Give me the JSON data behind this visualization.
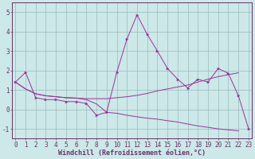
{
  "xlabel": "Windchill (Refroidissement éolien,°C)",
  "bg_color": "#cce8e8",
  "grid_color": "#99bbbb",
  "line_color": "#993399",
  "spine_color": "#663366",
  "x_ticks": [
    0,
    1,
    2,
    3,
    4,
    5,
    6,
    7,
    8,
    9,
    10,
    11,
    12,
    13,
    14,
    15,
    16,
    17,
    18,
    19,
    20,
    21,
    22,
    23
  ],
  "y_ticks": [
    -1,
    0,
    1,
    2,
    3,
    4,
    5
  ],
  "ylim": [
    -1.5,
    5.5
  ],
  "xlim": [
    -0.3,
    23.3
  ],
  "line1_x": [
    0,
    1,
    2,
    3,
    4,
    5,
    6,
    7,
    8,
    9,
    10,
    11,
    12,
    13,
    14,
    15,
    16,
    17,
    18,
    19,
    20,
    21,
    22,
    23
  ],
  "line1_y": [
    1.4,
    1.9,
    0.6,
    0.5,
    0.5,
    0.4,
    0.4,
    0.3,
    -0.3,
    -0.15,
    1.9,
    3.6,
    4.85,
    3.85,
    3.0,
    2.1,
    1.55,
    1.1,
    1.55,
    1.4,
    2.1,
    1.85,
    0.7,
    -1.0
  ],
  "line2_x": [
    0,
    1,
    2,
    3,
    4,
    5,
    6,
    7,
    8,
    9,
    10,
    11,
    12,
    13,
    14,
    15,
    16,
    17,
    18,
    19,
    20,
    21,
    22
  ],
  "line2_y": [
    1.4,
    1.05,
    0.8,
    0.7,
    0.65,
    0.6,
    0.58,
    0.55,
    0.55,
    0.55,
    0.6,
    0.65,
    0.72,
    0.82,
    0.95,
    1.05,
    1.15,
    1.25,
    1.4,
    1.55,
    1.68,
    1.78,
    1.88
  ],
  "line3_x": [
    0,
    1,
    2,
    3,
    4,
    5,
    6,
    7,
    8,
    9,
    10,
    11,
    12,
    13,
    14,
    15,
    16,
    17,
    18,
    19,
    20,
    21,
    22
  ],
  "line3_y": [
    1.4,
    1.05,
    0.8,
    0.7,
    0.65,
    0.6,
    0.58,
    0.5,
    0.28,
    -0.15,
    -0.2,
    -0.3,
    -0.38,
    -0.45,
    -0.5,
    -0.58,
    -0.65,
    -0.75,
    -0.85,
    -0.92,
    -1.0,
    -1.05,
    -1.1
  ],
  "tick_fontsize": 5.5,
  "xlabel_fontsize": 6.0
}
